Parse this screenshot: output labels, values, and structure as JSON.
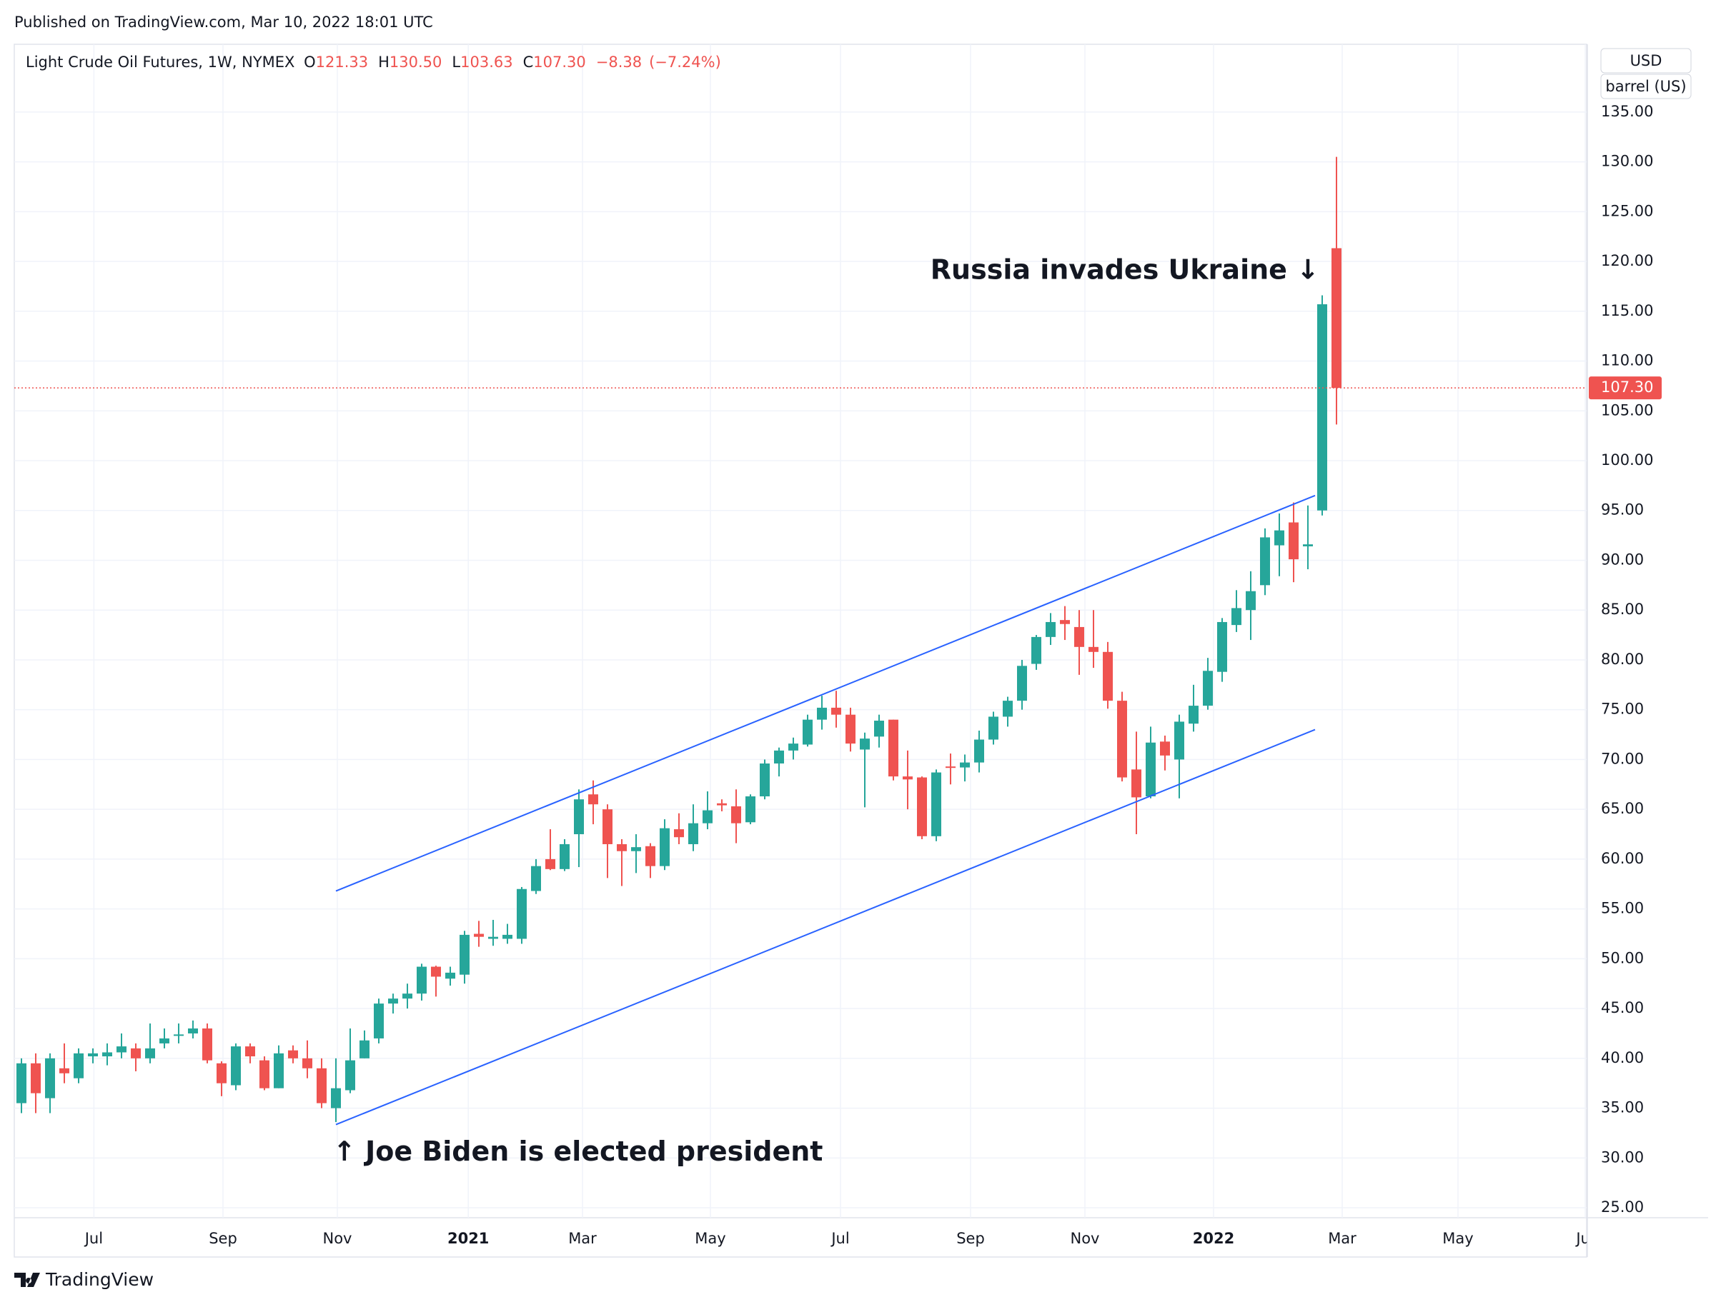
{
  "published": "Published on TradingView.com, Mar 10, 2022 18:01 UTC",
  "footer": "TradingView",
  "chart_data": {
    "type": "candlestick",
    "title": "Light Crude Oil Futures, 1W, NYMEX",
    "ohlc_letters": [
      "O",
      "H",
      "L",
      "C"
    ],
    "last_labels": {
      "open": "121.33",
      "high": "130.50",
      "low": "103.63",
      "close": "107.30"
    },
    "change": {
      "value": -8.38,
      "label": "−8.38"
    },
    "change_pct": {
      "value": -7.24,
      "label": "(−7.24%)"
    },
    "currency": "USD",
    "unit": "barrel (US)",
    "up_color": "#26a69a",
    "down_color": "#ef5350",
    "grid": true,
    "candles": [
      {
        "open": 35.5,
        "high": 40,
        "low": 34.5,
        "close": 39.5
      },
      {
        "open": 39.5,
        "high": 40.5,
        "low": 34.5,
        "close": 36.5
      },
      {
        "open": 36,
        "high": 40.5,
        "low": 34.5,
        "close": 40
      },
      {
        "open": 39,
        "high": 41.5,
        "low": 37.5,
        "close": 38.5
      },
      {
        "open": 38,
        "high": 41,
        "low": 37.5,
        "close": 40.5
      },
      {
        "open": 40.2,
        "high": 41,
        "low": 39.5,
        "close": 40.5
      },
      {
        "open": 40.2,
        "high": 41.5,
        "low": 39.3,
        "close": 40.6
      },
      {
        "open": 40.6,
        "high": 42.5,
        "low": 40,
        "close": 41.2
      },
      {
        "open": 41,
        "high": 41.5,
        "low": 38.7,
        "close": 40
      },
      {
        "open": 40,
        "high": 43.5,
        "low": 39.5,
        "close": 41
      },
      {
        "open": 41.5,
        "high": 43,
        "low": 41,
        "close": 42
      },
      {
        "open": 42.3,
        "high": 43.5,
        "low": 41.5,
        "close": 42.4
      },
      {
        "open": 42.5,
        "high": 43.8,
        "low": 42,
        "close": 43
      },
      {
        "open": 43,
        "high": 43.5,
        "low": 39.5,
        "close": 39.8
      },
      {
        "open": 39.5,
        "high": 39.7,
        "low": 36.2,
        "close": 37.5
      },
      {
        "open": 37.3,
        "high": 41.5,
        "low": 36.8,
        "close": 41.2
      },
      {
        "open": 41.2,
        "high": 41.5,
        "low": 39.5,
        "close": 40.2
      },
      {
        "open": 39.8,
        "high": 40.2,
        "low": 36.8,
        "close": 37
      },
      {
        "open": 37,
        "high": 41.3,
        "low": 37,
        "close": 40.5
      },
      {
        "open": 40.8,
        "high": 41.3,
        "low": 39.5,
        "close": 40
      },
      {
        "open": 40,
        "high": 41.8,
        "low": 38,
        "close": 39
      },
      {
        "open": 39,
        "high": 40,
        "low": 35,
        "close": 35.5
      },
      {
        "open": 35,
        "high": 40,
        "low": 33.6,
        "close": 37
      },
      {
        "open": 36.8,
        "high": 43,
        "low": 36.5,
        "close": 39.8
      },
      {
        "open": 40,
        "high": 42.8,
        "low": 40,
        "close": 41.8
      },
      {
        "open": 42,
        "high": 46,
        "low": 41.5,
        "close": 45.5
      },
      {
        "open": 45.5,
        "high": 46.5,
        "low": 44.5,
        "close": 46
      },
      {
        "open": 46,
        "high": 47.5,
        "low": 45,
        "close": 46.5
      },
      {
        "open": 46.5,
        "high": 49.5,
        "low": 45.8,
        "close": 49.2
      },
      {
        "open": 49.2,
        "high": 49.3,
        "low": 46.2,
        "close": 48.2
      },
      {
        "open": 48,
        "high": 49.2,
        "low": 47.3,
        "close": 48.6
      },
      {
        "open": 48.4,
        "high": 52.8,
        "low": 47.5,
        "close": 52.4
      },
      {
        "open": 52.5,
        "high": 53.8,
        "low": 51.2,
        "close": 52.2
      },
      {
        "open": 52,
        "high": 53.9,
        "low": 51.3,
        "close": 52.2
      },
      {
        "open": 52,
        "high": 53.5,
        "low": 51.5,
        "close": 52.4
      },
      {
        "open": 52,
        "high": 57.2,
        "low": 51.5,
        "close": 57
      },
      {
        "open": 56.8,
        "high": 60,
        "low": 56.5,
        "close": 59.3
      },
      {
        "open": 60,
        "high": 63,
        "low": 58.9,
        "close": 59
      },
      {
        "open": 59,
        "high": 62,
        "low": 58.8,
        "close": 61.5
      },
      {
        "open": 62.5,
        "high": 67,
        "low": 59.2,
        "close": 66
      },
      {
        "open": 66.5,
        "high": 67.9,
        "low": 63.5,
        "close": 65.5
      },
      {
        "open": 65,
        "high": 65.5,
        "low": 58.1,
        "close": 61.5
      },
      {
        "open": 61.5,
        "high": 62,
        "low": 57.3,
        "close": 60.8
      },
      {
        "open": 60.8,
        "high": 62.5,
        "low": 58.6,
        "close": 61.2
      },
      {
        "open": 61.3,
        "high": 61.6,
        "low": 58.1,
        "close": 59.3
      },
      {
        "open": 59.3,
        "high": 64,
        "low": 58.9,
        "close": 63.1
      },
      {
        "open": 63,
        "high": 64.6,
        "low": 61.5,
        "close": 62.2
      },
      {
        "open": 61.5,
        "high": 65.5,
        "low": 60.8,
        "close": 63.6
      },
      {
        "open": 63.6,
        "high": 66.8,
        "low": 63,
        "close": 64.9
      },
      {
        "open": 65.6,
        "high": 66,
        "low": 64.8,
        "close": 65.4
      },
      {
        "open": 65.3,
        "high": 67,
        "low": 61.6,
        "close": 63.6
      },
      {
        "open": 63.7,
        "high": 66.5,
        "low": 63.5,
        "close": 66.3
      },
      {
        "open": 66.3,
        "high": 70,
        "low": 66,
        "close": 69.6
      },
      {
        "open": 69.6,
        "high": 71.2,
        "low": 68.3,
        "close": 70.9
      },
      {
        "open": 70.9,
        "high": 72.2,
        "low": 70,
        "close": 71.6
      },
      {
        "open": 71.5,
        "high": 74.5,
        "low": 71.3,
        "close": 74
      },
      {
        "open": 74,
        "high": 76.4,
        "low": 73,
        "close": 75.2
      },
      {
        "open": 75.2,
        "high": 76.9,
        "low": 73.2,
        "close": 74.5
      },
      {
        "open": 74.5,
        "high": 75.2,
        "low": 70.8,
        "close": 71.6
      },
      {
        "open": 71,
        "high": 72.7,
        "low": 65.2,
        "close": 72.1
      },
      {
        "open": 72.3,
        "high": 74.5,
        "low": 71.2,
        "close": 73.9
      },
      {
        "open": 74,
        "high": 74,
        "low": 67.9,
        "close": 68.3
      },
      {
        "open": 68.3,
        "high": 70.9,
        "low": 65,
        "close": 68
      },
      {
        "open": 68.2,
        "high": 68.3,
        "low": 62,
        "close": 62.3
      },
      {
        "open": 62.3,
        "high": 69,
        "low": 61.8,
        "close": 68.7
      },
      {
        "open": 69.3,
        "high": 70.6,
        "low": 67.5,
        "close": 69.2
      },
      {
        "open": 69.2,
        "high": 70.5,
        "low": 67.8,
        "close": 69.7
      },
      {
        "open": 69.7,
        "high": 72.9,
        "low": 68.7,
        "close": 72
      },
      {
        "open": 72,
        "high": 74.8,
        "low": 71.5,
        "close": 74.3
      },
      {
        "open": 74.3,
        "high": 76.3,
        "low": 73.3,
        "close": 75.9
      },
      {
        "open": 75.9,
        "high": 80,
        "low": 75,
        "close": 79.4
      },
      {
        "open": 79.6,
        "high": 82.5,
        "low": 79,
        "close": 82.3
      },
      {
        "open": 82.3,
        "high": 84.7,
        "low": 81.5,
        "close": 83.8
      },
      {
        "open": 84,
        "high": 85.4,
        "low": 82,
        "close": 83.6
      },
      {
        "open": 83.3,
        "high": 85,
        "low": 78.5,
        "close": 81.3
      },
      {
        "open": 81.3,
        "high": 85,
        "low": 79.2,
        "close": 80.8
      },
      {
        "open": 80.8,
        "high": 81.8,
        "low": 75.1,
        "close": 75.9
      },
      {
        "open": 75.9,
        "high": 76.8,
        "low": 67.8,
        "close": 68.2
      },
      {
        "open": 69,
        "high": 72.8,
        "low": 62.5,
        "close": 66.2
      },
      {
        "open": 66.3,
        "high": 73.3,
        "low": 66.1,
        "close": 71.7
      },
      {
        "open": 71.8,
        "high": 72.4,
        "low": 68.9,
        "close": 70.4
      },
      {
        "open": 70,
        "high": 74.5,
        "low": 66.1,
        "close": 73.8
      },
      {
        "open": 73.6,
        "high": 77.5,
        "low": 72.8,
        "close": 75.4
      },
      {
        "open": 75.4,
        "high": 80.2,
        "low": 75,
        "close": 78.9
      },
      {
        "open": 78.8,
        "high": 84.2,
        "low": 77.8,
        "close": 83.8
      },
      {
        "open": 83.5,
        "high": 87,
        "low": 82.8,
        "close": 85.2
      },
      {
        "open": 85,
        "high": 88.9,
        "low": 82,
        "close": 86.9
      },
      {
        "open": 87.5,
        "high": 93.2,
        "low": 86.5,
        "close": 92.3
      },
      {
        "open": 91.5,
        "high": 94.7,
        "low": 88.4,
        "close": 93
      },
      {
        "open": 93.8,
        "high": 95.8,
        "low": 87.8,
        "close": 90.1
      },
      {
        "open": 91.4,
        "high": 95.5,
        "low": 89.1,
        "close": 91.6
      },
      {
        "open": 95,
        "high": 116.6,
        "low": 94.5,
        "close": 115.7
      },
      {
        "open": 121.33,
        "high": 130.5,
        "low": 103.63,
        "close": 107.3
      }
    ],
    "xlim": [
      -0.5,
      109.5
    ],
    "xticks": [
      {
        "value": 5.07,
        "label": "Jul"
      },
      {
        "value": 14.1,
        "label": "Sep"
      },
      {
        "value": 22.1,
        "label": "Nov"
      },
      {
        "value": 31.26,
        "label": "2021"
      },
      {
        "value": 39.25,
        "label": "Mar"
      },
      {
        "value": 48.2,
        "label": "May"
      },
      {
        "value": 57.3,
        "label": "Jul"
      },
      {
        "value": 66.4,
        "label": "Sep"
      },
      {
        "value": 74.4,
        "label": "Nov"
      },
      {
        "value": 83.4,
        "label": "2022"
      },
      {
        "value": 92.4,
        "label": "Mar"
      },
      {
        "value": 100.5,
        "label": "May"
      },
      {
        "value": 109.4,
        "label": "Jul"
      }
    ],
    "ylim": [
      24,
      141.8
    ],
    "yticks": [
      {
        "value": 25,
        "label": "25.00"
      },
      {
        "value": 30,
        "label": "30.00"
      },
      {
        "value": 35,
        "label": "35.00"
      },
      {
        "value": 40,
        "label": "40.00"
      },
      {
        "value": 45,
        "label": "45.00"
      },
      {
        "value": 50,
        "label": "50.00"
      },
      {
        "value": 55,
        "label": "55.00"
      },
      {
        "value": 60,
        "label": "60.00"
      },
      {
        "value": 65,
        "label": "65.00"
      },
      {
        "value": 70,
        "label": "70.00"
      },
      {
        "value": 75,
        "label": "75.00"
      },
      {
        "value": 80,
        "label": "80.00"
      },
      {
        "value": 85,
        "label": "85.00"
      },
      {
        "value": 90,
        "label": "90.00"
      },
      {
        "value": 95,
        "label": "95.00"
      },
      {
        "value": 100,
        "label": "100.00"
      },
      {
        "value": 105,
        "label": "105.00"
      },
      {
        "value": 110,
        "label": "110.00"
      },
      {
        "value": 115,
        "label": "115.00"
      },
      {
        "value": 120,
        "label": "120.00"
      },
      {
        "value": 125,
        "label": "125.00"
      },
      {
        "value": 130,
        "label": "130.00"
      },
      {
        "value": 135,
        "label": "135.00"
      }
    ],
    "trendlines": [
      {
        "color": "#2962ff",
        "x": [
          22,
          90.5
        ],
        "y": [
          56.8,
          96.5
        ]
      },
      {
        "color": "#2962ff",
        "x": [
          22,
          90.5
        ],
        "y": [
          33.35,
          73.0
        ]
      }
    ],
    "annotations": [
      {
        "text": "Russia invades Ukraine ↓",
        "x": 90.5,
        "y": 119
      },
      {
        "text": "↑ Joe Biden is elected president",
        "x": 22,
        "y": 30.5
      }
    ]
  }
}
